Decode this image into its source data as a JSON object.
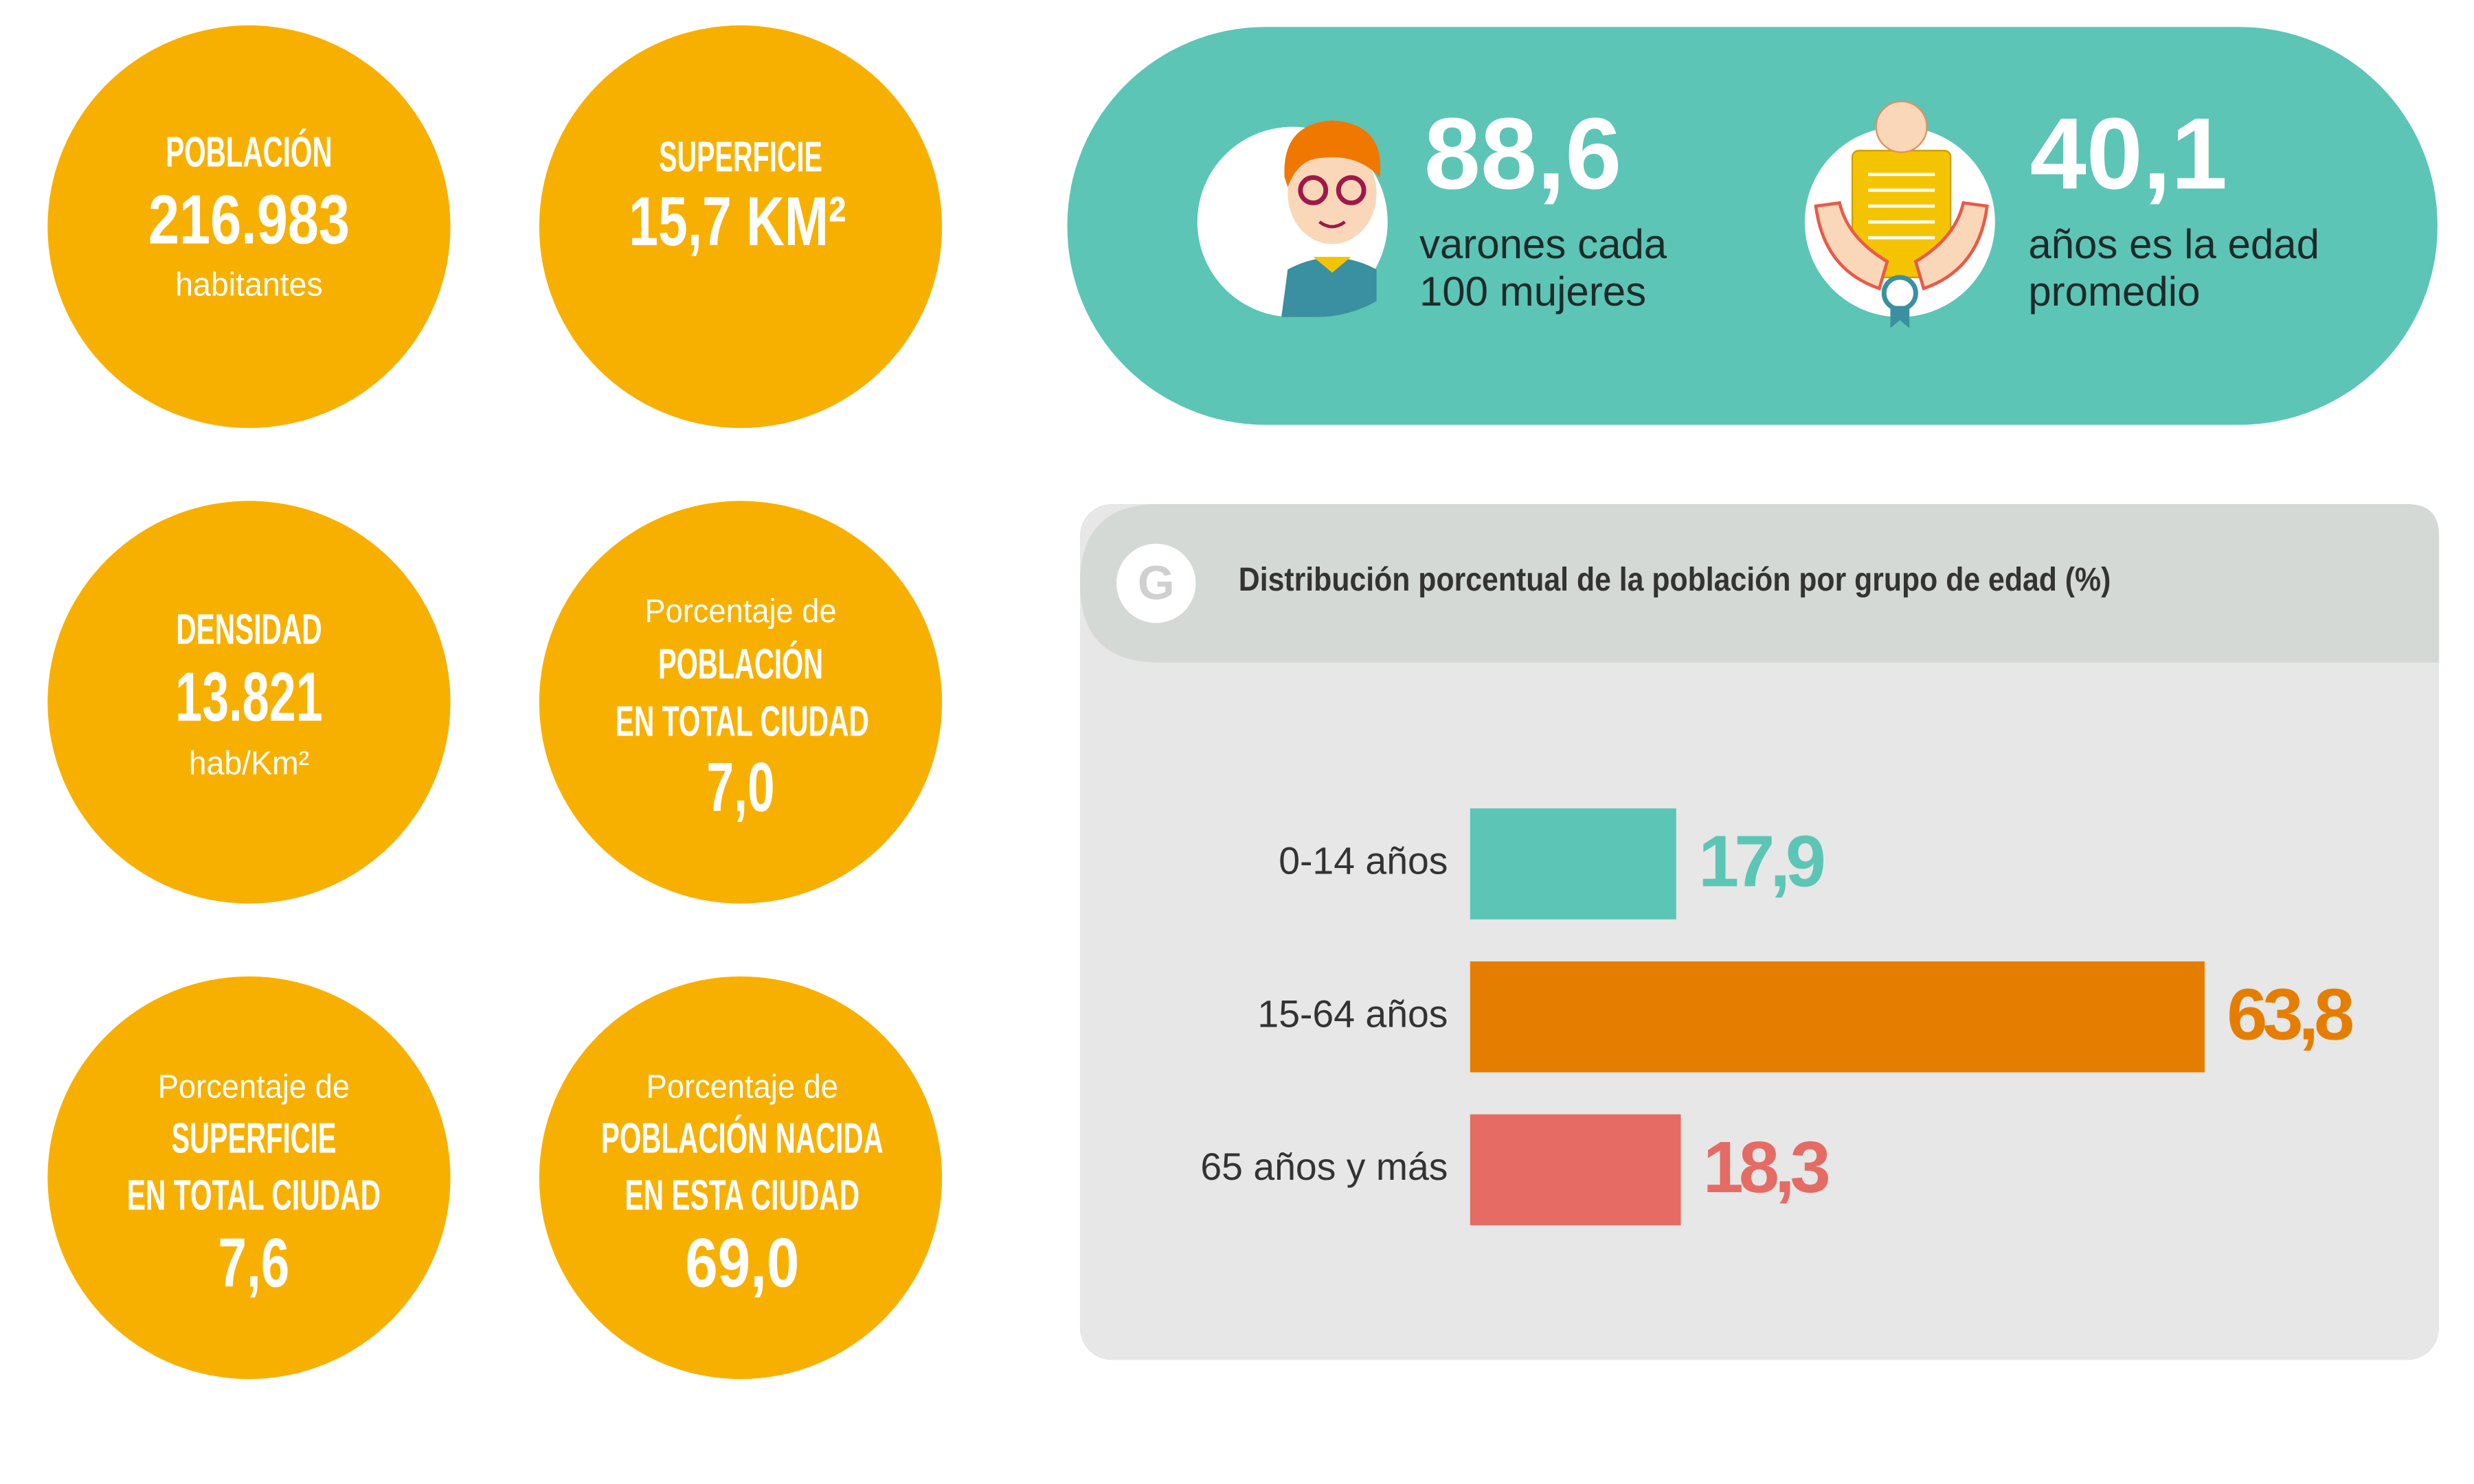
{
  "circles": [
    {
      "title": "POBLACIÓN",
      "value": "216.983",
      "unit": "habitantes"
    },
    {
      "title": "SUPERFICIE",
      "value": "15,7 KM²"
    },
    {
      "title": "DENSIDAD",
      "value": "13.821",
      "unit": "hab/Km²"
    },
    {
      "prefix": "Porcentaje de",
      "title": [
        "POBLACIÓN",
        "EN TOTAL CIUDAD"
      ],
      "value": "7,0"
    },
    {
      "prefix": "Porcentaje de",
      "title": [
        "SUPERFICIE",
        "EN TOTAL CIUDAD"
      ],
      "value": "7,6"
    },
    {
      "prefix": "Porcentaje de",
      "title": [
        "POBLACIÓN NACIDA",
        "EN ESTA CIUDAD"
      ],
      "value": "69,0"
    }
  ],
  "highlights": [
    {
      "value": "88,6",
      "text": [
        "varones cada",
        "100 mujeres"
      ]
    },
    {
      "value": "40,1",
      "text": [
        "años es la edad",
        "promedio"
      ]
    }
  ],
  "chart_data": {
    "type": "bar",
    "orientation": "horizontal",
    "badge": "G",
    "title": "Distribución porcentual de la población por grupo de edad (%)",
    "categories": [
      "0-14 años",
      "15-64 años",
      "65 años y más"
    ],
    "values": [
      17.9,
      63.8,
      18.3
    ],
    "value_labels": [
      "17,9",
      "63,8",
      "18,3"
    ],
    "colors": [
      "#5cc5b6",
      "#e57e00",
      "#e56b64"
    ]
  }
}
